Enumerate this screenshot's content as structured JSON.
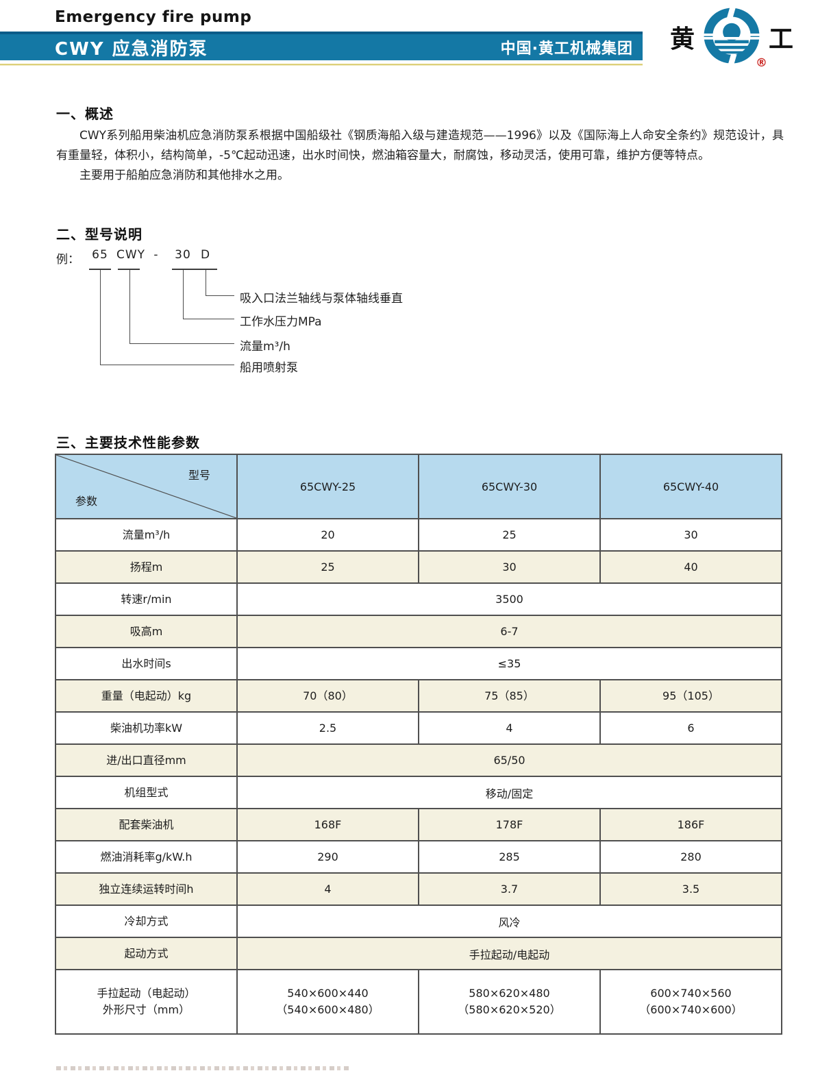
{
  "header": {
    "english_title": "Emergency fire pump",
    "cn_title": "CWY 应急消防泵",
    "company": "中国·黄工机械集团",
    "logo_char_left": "黄",
    "logo_char_right": "工",
    "registered_mark": "®"
  },
  "colors": {
    "header_bar_blue": "#1478a5",
    "header_bar_top_edge": "#0b5c89",
    "gold_divider": "#ddd07a",
    "table_header_blue": "#b7daee",
    "row_cream": "#f4f1e0",
    "logo_blue": "#1579a5",
    "registered_red": "#c9231f"
  },
  "section1": {
    "heading": "一、概述",
    "paragraph1": "CWY系列船用柴油机应急消防泵系根据中国船级社《钢质海船入级与建造规范——1996》以及《国际海上人命安全条约》规范设计，具有重量轻，体积小，结构简单，-5℃起动迅速，出水时间快，燃油箱容量大，耐腐蚀，移动灵活，使用可靠，维护方便等特点。",
    "paragraph2": "主要用于船舶应急消防和其他排水之用。"
  },
  "section2": {
    "heading": "二、型号说明",
    "diagram": {
      "example_prefix": "例：",
      "code_parts": [
        "65",
        "CWY",
        "-",
        "30",
        "D"
      ],
      "callouts": [
        {
          "part": "D",
          "label": "吸入口法兰轴线与泵体轴线垂直"
        },
        {
          "part": "30",
          "label": "工作水压力MPa"
        },
        {
          "part": "CWY",
          "label": "流量m³/h"
        },
        {
          "part": "65",
          "label": "船用喷射泵"
        }
      ]
    }
  },
  "section3": {
    "heading": "三、主要技术性能参数"
  },
  "table": {
    "corner_top": "型号",
    "corner_bottom": "参数",
    "columns": [
      "65CWY-25",
      "65CWY-30",
      "65CWY-40"
    ],
    "rows": [
      {
        "label": "流量m³/h",
        "values": [
          "20",
          "25",
          "30"
        ]
      },
      {
        "label": "扬程m",
        "values": [
          "25",
          "30",
          "40"
        ]
      },
      {
        "label": "转速r/min",
        "value": "3500",
        "span": true
      },
      {
        "label": "吸高m",
        "value": "6-7",
        "span": true
      },
      {
        "label": "出水时间s",
        "value": "≤35",
        "span": true
      },
      {
        "label": "重量（电起动）kg",
        "values": [
          "70（80）",
          "75（85）",
          "95（105）"
        ]
      },
      {
        "label": "柴油机功率kW",
        "values": [
          "2.5",
          "4",
          "6"
        ]
      },
      {
        "label": "进/出口直径mm",
        "value": "65/50",
        "span": true
      },
      {
        "label": "机组型式",
        "value": "移动/固定",
        "span": true
      },
      {
        "label": "配套柴油机",
        "values": [
          "168F",
          "178F",
          "186F"
        ]
      },
      {
        "label": "燃油消耗率g/kW.h",
        "values": [
          "290",
          "285",
          "280"
        ]
      },
      {
        "label": "独立连续运转时间h",
        "values": [
          "4",
          "3.7",
          "3.5"
        ]
      },
      {
        "label": "冷却方式",
        "value": "风冷",
        "span": true
      },
      {
        "label": "起动方式",
        "value": "手拉起动/电起动",
        "span": true
      },
      {
        "label": "手拉起动（电起动）\n外形尺寸（mm）",
        "tall": true,
        "values": [
          "540×600×440\n（540×600×480）",
          "580×620×480\n（580×620×520）",
          "600×740×560\n（600×740×600）"
        ]
      }
    ]
  }
}
